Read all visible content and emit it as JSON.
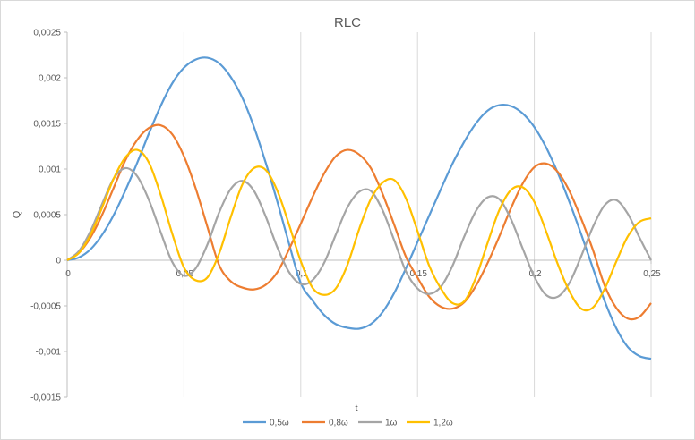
{
  "chart_data": {
    "type": "line",
    "title": "RLC",
    "xlabel": "t",
    "ylabel": "Q",
    "xlim": [
      0,
      0.25
    ],
    "ylim": [
      -0.0015,
      0.0025
    ],
    "x_ticks": [
      0,
      0.05,
      0.1,
      0.15,
      0.2,
      0.25
    ],
    "x_tick_labels": [
      "0",
      "0,05",
      "0,1",
      "0,15",
      "0,2",
      "0,25"
    ],
    "y_ticks": [
      0.0025,
      0.002,
      0.0015,
      0.001,
      0.0005,
      0,
      -0.0005,
      -0.001,
      -0.0015
    ],
    "y_tick_labels": [
      "0,0025",
      "0,002",
      "0,0015",
      "0,001",
      "0,0005",
      "0",
      "-0,0005",
      "-0,001",
      "-0,0015"
    ],
    "grid": "vertical",
    "legend_position": "bottom",
    "series": [
      {
        "name": "0,5ω",
        "color": "#5B9BD5",
        "x": [
          0,
          0.005,
          0.01,
          0.015,
          0.02,
          0.025,
          0.03,
          0.035,
          0.04,
          0.045,
          0.05,
          0.055,
          0.06,
          0.065,
          0.07,
          0.075,
          0.08,
          0.085,
          0.09,
          0.095,
          0.1,
          0.105,
          0.11,
          0.115,
          0.12,
          0.125,
          0.13,
          0.135,
          0.14,
          0.145,
          0.15,
          0.155,
          0.16,
          0.165,
          0.17,
          0.175,
          0.18,
          0.185,
          0.19,
          0.195,
          0.2,
          0.205,
          0.21,
          0.215,
          0.22,
          0.225,
          0.23,
          0.235,
          0.24,
          0.245,
          0.25
        ],
        "values": [
          0,
          3e-05,
          0.00012,
          0.00028,
          0.0005,
          0.00077,
          0.00107,
          0.00139,
          0.00169,
          0.00194,
          0.00211,
          0.0022,
          0.00222,
          0.00216,
          0.00201,
          0.00178,
          0.00146,
          0.00107,
          0.00064,
          0.00018,
          -0.00025,
          -0.00044,
          -0.0006,
          -0.0007,
          -0.00074,
          -0.00075,
          -0.0007,
          -0.00057,
          -0.00036,
          -9e-05,
          0.0002,
          0.00049,
          0.00078,
          0.00106,
          0.0013,
          0.0015,
          0.00164,
          0.0017,
          0.00169,
          0.00161,
          0.00146,
          0.00124,
          0.00096,
          0.00064,
          0.00029,
          -8e-05,
          -0.00044,
          -0.00074,
          -0.00095,
          -0.00105,
          -0.00108
        ]
      },
      {
        "name": "0,8ω",
        "color": "#ED7D31",
        "x": [
          0,
          0.005,
          0.01,
          0.015,
          0.02,
          0.025,
          0.03,
          0.035,
          0.04,
          0.045,
          0.05,
          0.055,
          0.06,
          0.065,
          0.07,
          0.075,
          0.08,
          0.085,
          0.09,
          0.095,
          0.1,
          0.105,
          0.11,
          0.115,
          0.12,
          0.125,
          0.13,
          0.135,
          0.14,
          0.145,
          0.15,
          0.155,
          0.16,
          0.165,
          0.17,
          0.175,
          0.18,
          0.185,
          0.19,
          0.195,
          0.2,
          0.205,
          0.21,
          0.215,
          0.22,
          0.225,
          0.23,
          0.235,
          0.24,
          0.245,
          0.25
        ],
        "values": [
          0,
          8e-05,
          0.00025,
          0.0005,
          0.0008,
          0.0011,
          0.00132,
          0.00145,
          0.00148,
          0.00138,
          0.00114,
          0.00079,
          0.00037,
          -5e-05,
          -0.00023,
          -0.0003,
          -0.00032,
          -0.00027,
          -0.00013,
          0.00012,
          0.0004,
          0.00069,
          0.00095,
          0.00114,
          0.00121,
          0.00116,
          0.00101,
          0.00073,
          0.00039,
          4e-05,
          -0.00019,
          -0.0004,
          -0.00051,
          -0.00053,
          -0.00046,
          -0.00028,
          -3e-05,
          0.00026,
          0.00057,
          0.00084,
          0.00102,
          0.00106,
          0.00097,
          0.00076,
          0.00046,
          0.00012,
          -0.00027,
          -0.00052,
          -0.00064,
          -0.00062,
          -0.00047
        ]
      },
      {
        "name": "1ω",
        "color": "#A5A5A5",
        "x": [
          0,
          0.005,
          0.01,
          0.015,
          0.02,
          0.025,
          0.03,
          0.035,
          0.04,
          0.045,
          0.05,
          0.055,
          0.06,
          0.065,
          0.07,
          0.075,
          0.08,
          0.085,
          0.09,
          0.095,
          0.1,
          0.105,
          0.11,
          0.115,
          0.12,
          0.125,
          0.13,
          0.135,
          0.14,
          0.145,
          0.15,
          0.155,
          0.16,
          0.165,
          0.17,
          0.175,
          0.18,
          0.185,
          0.19,
          0.195,
          0.2,
          0.205,
          0.21,
          0.215,
          0.22,
          0.225,
          0.23,
          0.235,
          0.24,
          0.245,
          0.25
        ],
        "values": [
          0,
          0.0001,
          0.00032,
          0.00062,
          0.0009,
          0.00101,
          0.00092,
          0.00066,
          0.00031,
          -2e-05,
          -0.00017,
          -9e-05,
          0.00017,
          0.00052,
          0.00078,
          0.00087,
          0.00076,
          0.00048,
          0.00014,
          -0.00013,
          -0.00026,
          -0.00022,
          -3e-05,
          0.00028,
          0.00058,
          0.00075,
          0.00076,
          0.00055,
          0.00022,
          -0.00012,
          -0.00031,
          -0.00037,
          -0.00029,
          -6e-05,
          0.00026,
          0.00054,
          0.00069,
          0.00067,
          0.00045,
          0.00013,
          -0.00018,
          -0.00038,
          -0.0004,
          -0.00025,
          4e-05,
          0.00036,
          0.0006,
          0.00066,
          0.00051,
          0.00025,
          0
        ]
      },
      {
        "name": "1,2ω",
        "color": "#FFC000",
        "x": [
          0,
          0.005,
          0.01,
          0.015,
          0.02,
          0.025,
          0.03,
          0.035,
          0.04,
          0.045,
          0.05,
          0.055,
          0.06,
          0.065,
          0.07,
          0.075,
          0.08,
          0.085,
          0.09,
          0.095,
          0.1,
          0.105,
          0.11,
          0.115,
          0.12,
          0.125,
          0.13,
          0.135,
          0.14,
          0.145,
          0.15,
          0.155,
          0.16,
          0.165,
          0.17,
          0.175,
          0.18,
          0.185,
          0.19,
          0.195,
          0.2,
          0.205,
          0.21,
          0.215,
          0.22,
          0.225,
          0.23,
          0.235,
          0.24,
          0.245,
          0.25
        ],
        "values": [
          0,
          8e-05,
          0.00028,
          0.00058,
          0.0009,
          0.00113,
          0.00121,
          0.00107,
          0.00072,
          0.00029,
          -8e-05,
          -0.00022,
          -0.00019,
          7e-05,
          0.00047,
          0.00083,
          0.00101,
          0.00099,
          0.00076,
          0.00039,
          -1e-05,
          -0.0003,
          -0.00038,
          -0.00031,
          -5e-05,
          0.00034,
          0.00067,
          0.00085,
          0.00088,
          0.00068,
          0.00032,
          -6e-05,
          -0.00031,
          -0.00047,
          -0.00045,
          -0.00019,
          0.00019,
          0.00055,
          0.00077,
          0.0008,
          0.00064,
          0.00032,
          -4e-05,
          -0.00034,
          -0.00053,
          -0.00052,
          -0.00032,
          -2e-05,
          0.00026,
          0.00042,
          0.00046
        ]
      }
    ]
  }
}
